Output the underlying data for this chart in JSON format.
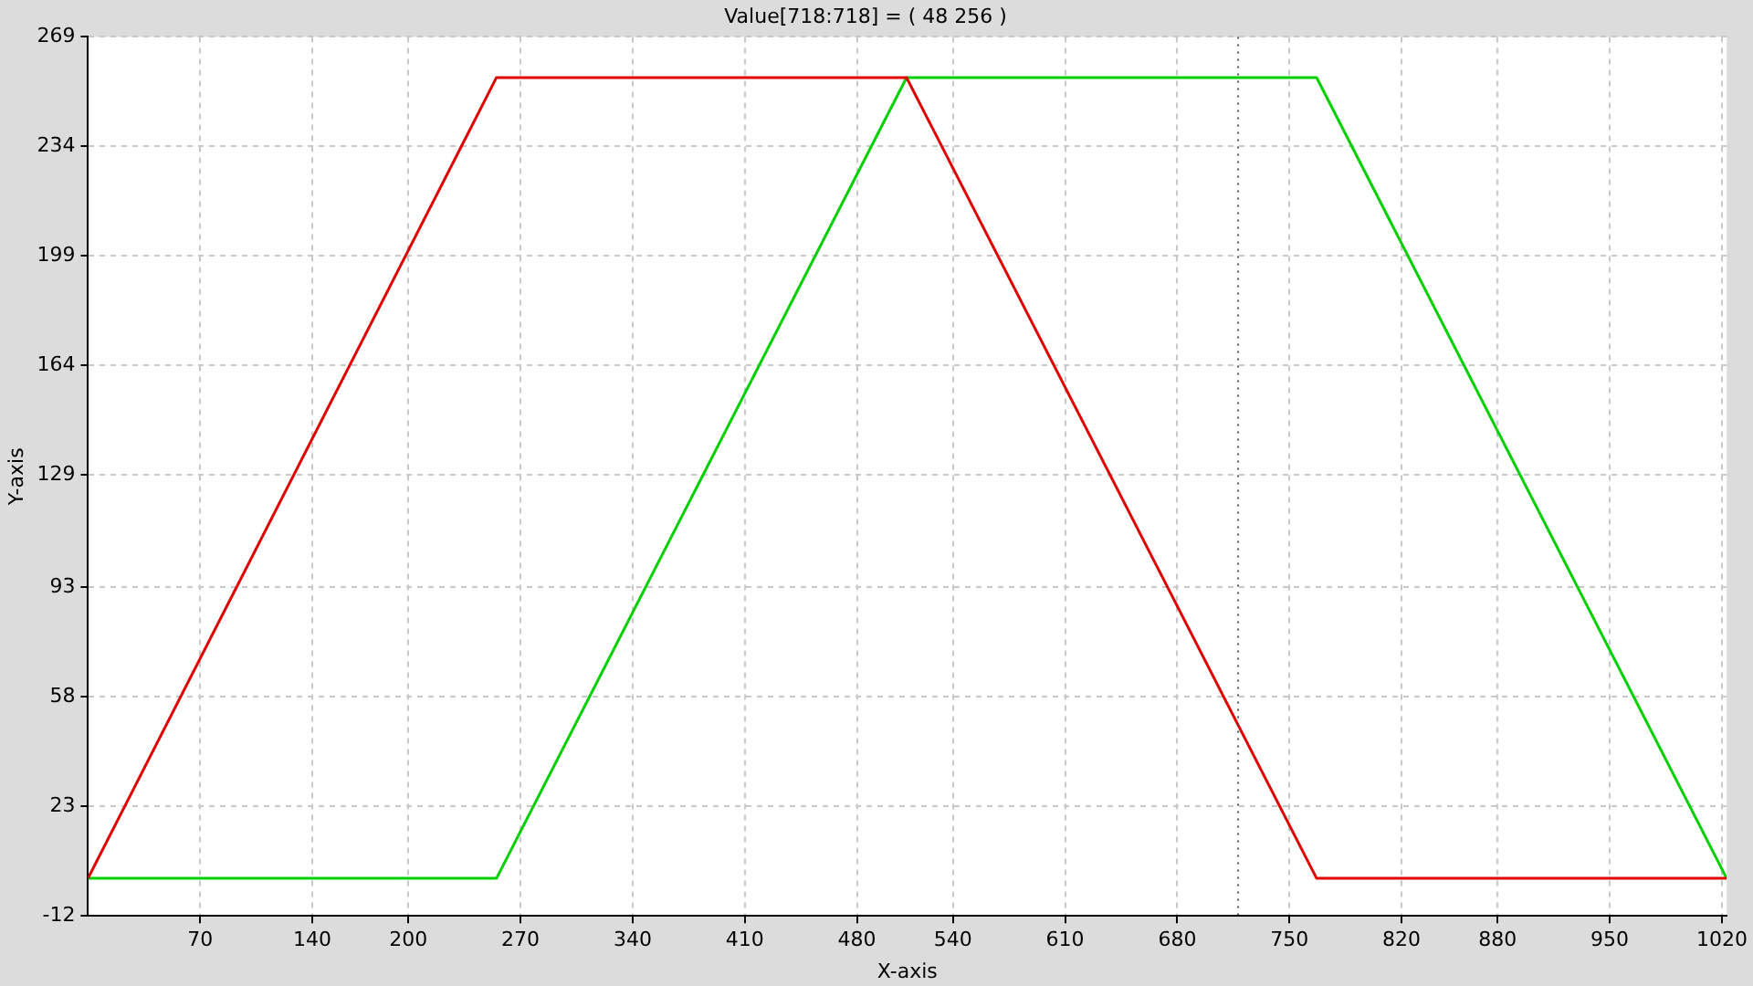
{
  "chart_data": {
    "type": "line",
    "title": "Value[718:718] = ( 48 256 )",
    "xlabel": "X-axis",
    "ylabel": "Y-axis",
    "x": [
      0,
      255,
      511,
      767,
      1023
    ],
    "series": [
      {
        "color": "#e00000",
        "values": [
          0,
          256,
          256,
          0,
          0
        ]
      },
      {
        "color": "#00d000",
        "values": [
          0,
          0,
          256,
          256,
          0
        ]
      }
    ],
    "xlim": [
      0,
      1023
    ],
    "xticks": [
      70,
      140,
      200,
      270,
      340,
      410,
      480,
      540,
      610,
      680,
      750,
      820,
      880,
      950,
      1020
    ],
    "ylim": [
      -12,
      269
    ],
    "yticks": [
      -12,
      23,
      58,
      93,
      129,
      164,
      199,
      234,
      269
    ],
    "ref_lines": [
      {
        "axis": "x",
        "value": 718,
        "color": "#505050",
        "line_style": "dotted"
      }
    ],
    "grid": true,
    "legend": false,
    "marker": "none",
    "line_style": "solid"
  }
}
